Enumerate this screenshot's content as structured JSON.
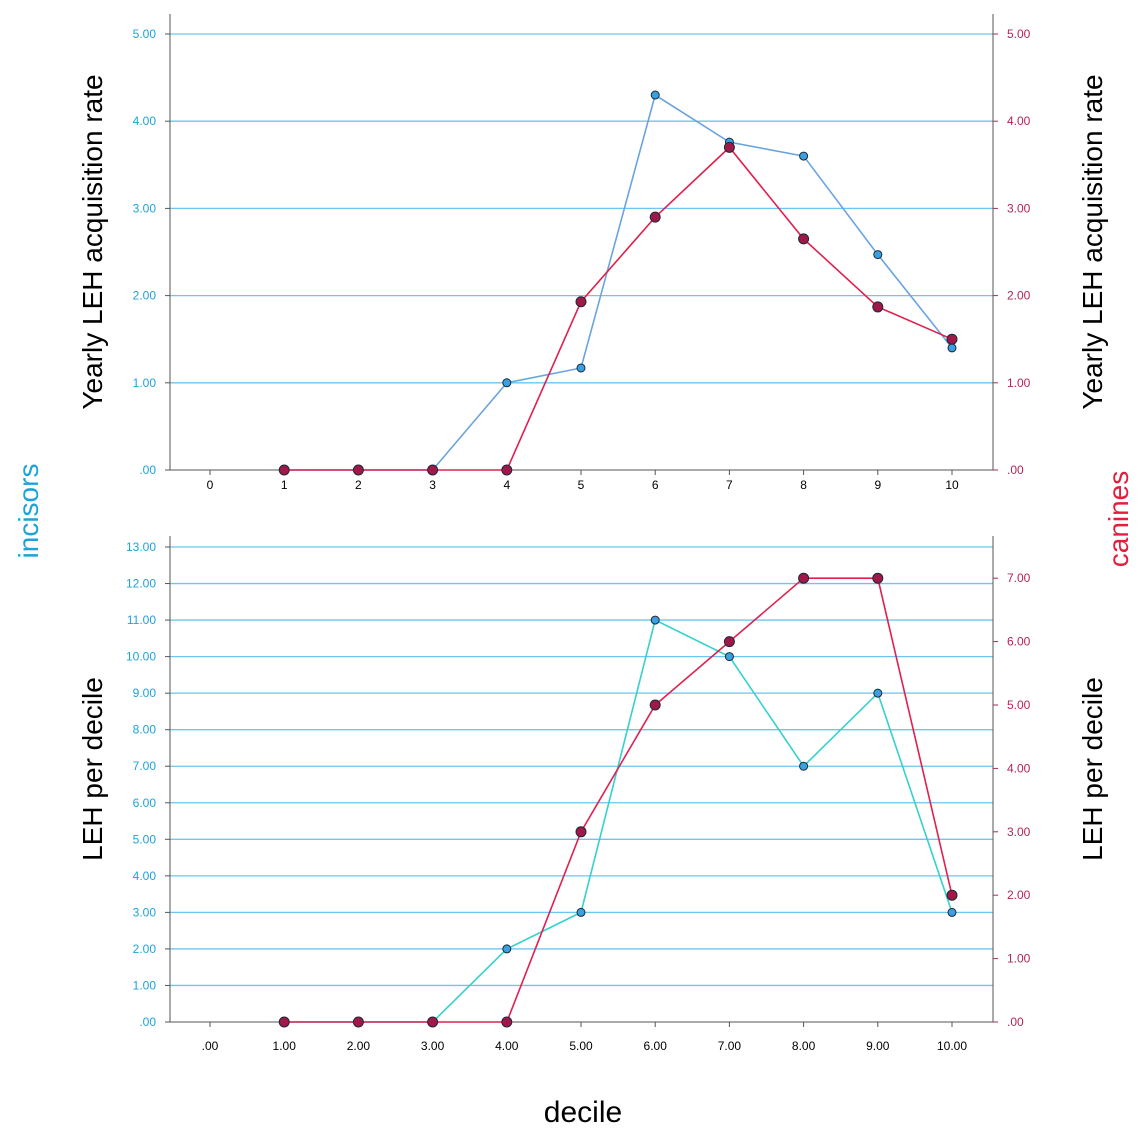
{
  "figure": {
    "xlabel": "decile",
    "left_group_label": "incisors",
    "right_group_label": "canines"
  },
  "colors": {
    "incisors_text": "#1ca3dc",
    "canines_text": "#e21e3c",
    "grid": "#6cc6ee",
    "axis": "#555555",
    "right_tick": "#b3245a",
    "left_tick": "#1ca3dc",
    "incisor_line_top": "#6aa4e0",
    "incisor_line_bottom": "#35d0d0",
    "canine_line": "#e0204e",
    "incisor_marker": "#3aa0e0",
    "canine_marker": "#a01848"
  },
  "chart_data": [
    {
      "type": "line",
      "x": [
        1,
        2,
        3,
        4,
        5,
        6,
        7,
        8,
        9,
        10
      ],
      "x_ticks": [
        "0",
        "1",
        "2",
        "3",
        "4",
        "5",
        "6",
        "7",
        "8",
        "9",
        "10"
      ],
      "x_range": [
        0,
        10
      ],
      "ylabel_left": "Yearly LEH acquisition rate",
      "ylabel_right": "Yearly LEH acquisition rate",
      "y_left_range": [
        0,
        5
      ],
      "y_left_ticks": [
        ".00",
        "1.00",
        "2.00",
        "3.00",
        "4.00",
        "5.00"
      ],
      "y_right_range": [
        0,
        5
      ],
      "y_right_ticks": [
        ".00",
        "1.00",
        "2.00",
        "3.00",
        "4.00",
        "5.00"
      ],
      "grid": true,
      "series": [
        {
          "axis": "left",
          "values": [
            0,
            0,
            0,
            1.0,
            1.17,
            4.3,
            3.76,
            3.6,
            2.47,
            1.4
          ]
        },
        {
          "axis": "right",
          "values": [
            0,
            0,
            0,
            0,
            1.93,
            2.9,
            3.7,
            2.65,
            1.87,
            1.5
          ]
        }
      ]
    },
    {
      "type": "line",
      "x": [
        1,
        2,
        3,
        4,
        5,
        6,
        7,
        8,
        9,
        10
      ],
      "x_ticks": [
        ".00",
        "1.00",
        "2.00",
        "3.00",
        "4.00",
        "5.00",
        "6.00",
        "7.00",
        "8.00",
        "9.00",
        "10.00"
      ],
      "x_range": [
        0,
        10
      ],
      "ylabel_left": "LEH per decile",
      "ylabel_right": "LEH per decile",
      "y_left_range": [
        0,
        13
      ],
      "y_left_ticks": [
        ".00",
        "1.00",
        "2.00",
        "3.00",
        "4.00",
        "5.00",
        "6.00",
        "7.00",
        "8.00",
        "9.00",
        "10.00",
        "11.00",
        "12.00",
        "13.00"
      ],
      "y_right_range": [
        0,
        7.58
      ],
      "y_right_ticks": [
        ".00",
        "1.00",
        "2.00",
        "3.00",
        "4.00",
        "5.00",
        "6.00",
        "7.00"
      ],
      "grid": true,
      "series": [
        {
          "axis": "left",
          "values": [
            0,
            0,
            0,
            2,
            3,
            11,
            10,
            7,
            9,
            3
          ]
        },
        {
          "axis": "right",
          "values": [
            0,
            0,
            0,
            0,
            3,
            5,
            6,
            7,
            7,
            2
          ]
        }
      ]
    }
  ]
}
